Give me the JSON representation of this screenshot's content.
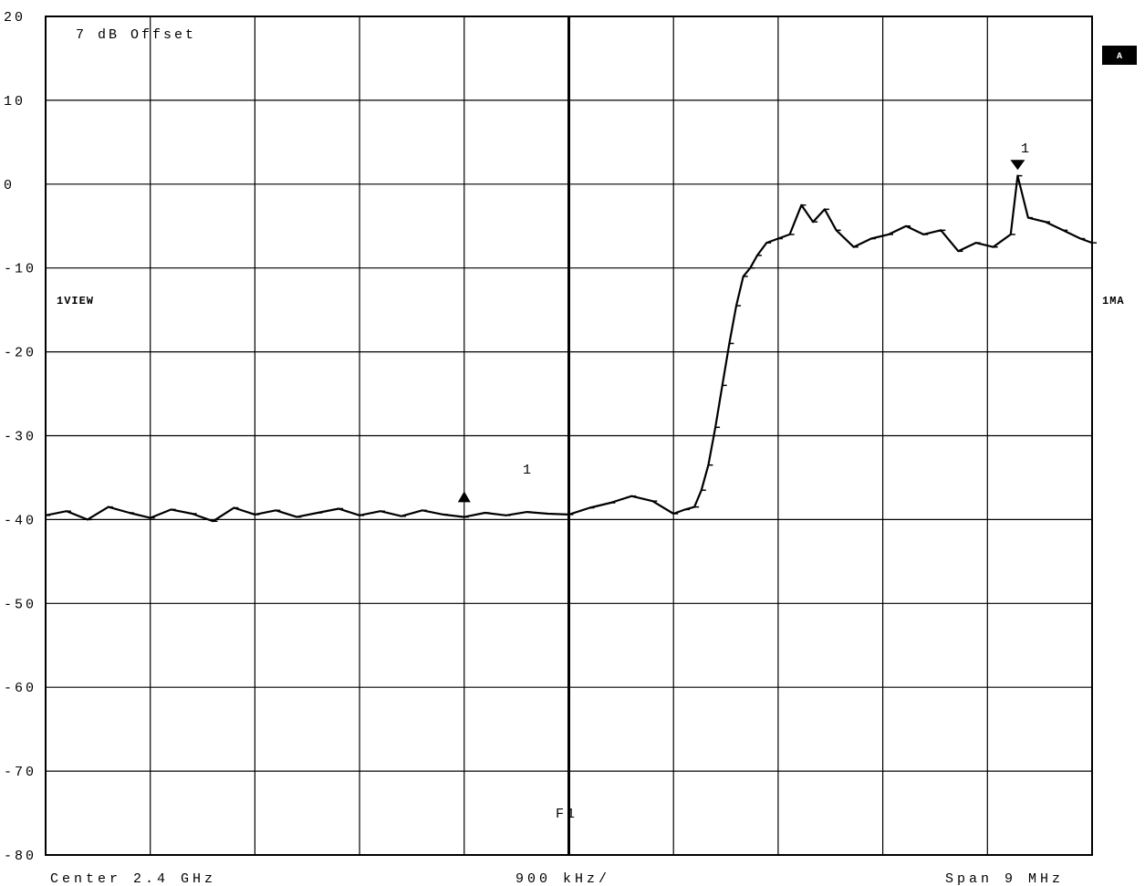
{
  "annotations": {
    "offset": "7 dB Offset",
    "left_label": "1VIEW",
    "right_label": "1MA",
    "badge": "A",
    "marker_label": "1",
    "marker_label_top": "1",
    "freq_marker": "F1"
  },
  "footer": {
    "center": "Center 2.4 GHz",
    "div": "900 kHz/",
    "span": "Span 9 MHz"
  },
  "chart_data": {
    "type": "line",
    "title": "",
    "xlabel": "",
    "ylabel": "",
    "y_unit": "dB",
    "ylim": [
      -80,
      20
    ],
    "y_ticks": [
      20,
      10,
      0,
      -10,
      -20,
      -30,
      -40,
      -50,
      -60,
      -70,
      -80
    ],
    "y_tick_labels": [
      "20",
      "10",
      "0",
      "-10",
      "-20",
      "-30",
      "-40",
      "-50",
      "-60",
      "-70",
      "-80"
    ],
    "x_unit": "MHz",
    "x_center": 2400,
    "x_span": 9,
    "xlim": [
      2395.5,
      2404.5
    ],
    "x_div": 0.9,
    "grid": true,
    "series": [
      {
        "x": [
          2395.5,
          2395.68,
          2395.86,
          2396.04,
          2396.22,
          2396.4,
          2396.58,
          2396.76,
          2396.94,
          2397.12,
          2397.3,
          2397.48,
          2397.66,
          2397.84,
          2398.02,
          2398.2,
          2398.38,
          2398.56,
          2398.74,
          2398.92,
          2399.1,
          2399.28,
          2399.46,
          2399.64,
          2399.82,
          2400.0,
          2400.18,
          2400.36,
          2400.54,
          2400.72,
          2400.9,
          2401.0,
          2401.08,
          2401.14,
          2401.2,
          2401.26,
          2401.32,
          2401.38,
          2401.44,
          2401.5,
          2401.56,
          2401.62,
          2401.7,
          2401.8,
          2401.9,
          2402.0,
          2402.1,
          2402.2,
          2402.3,
          2402.45,
          2402.6,
          2402.75,
          2402.9,
          2403.05,
          2403.2,
          2403.35,
          2403.5,
          2403.65,
          2403.8,
          2403.86,
          2403.95,
          2404.1,
          2404.25,
          2404.4,
          2404.5
        ],
        "y": [
          -39.5,
          -39.0,
          -40.0,
          -38.5,
          -39.2,
          -39.8,
          -38.8,
          -39.3,
          -40.2,
          -38.6,
          -39.4,
          -38.9,
          -39.7,
          -39.2,
          -38.7,
          -39.5,
          -39.0,
          -39.6,
          -38.9,
          -39.4,
          -39.7,
          -39.2,
          -39.5,
          -39.1,
          -39.3,
          -39.4,
          -38.6,
          -38.0,
          -37.2,
          -37.8,
          -39.3,
          -38.8,
          -38.5,
          -36.5,
          -33.5,
          -29.0,
          -24.0,
          -19.0,
          -14.5,
          -11.0,
          -10.0,
          -8.5,
          -7.0,
          -6.5,
          -6.0,
          -2.5,
          -4.5,
          -3.0,
          -5.5,
          -7.5,
          -6.5,
          -6.0,
          -5.0,
          -6.0,
          -5.5,
          -8.0,
          -7.0,
          -7.5,
          -6.0,
          1.0,
          -4.0,
          -4.5,
          -5.5,
          -6.5,
          -7.0
        ]
      }
    ],
    "markers": [
      {
        "label": "1",
        "x": 2399.1,
        "y": -37.5,
        "kind": "up-triangle"
      },
      {
        "label": "1",
        "x": 2403.86,
        "y": 1.8,
        "kind": "down-triangle"
      }
    ],
    "vertical_line": {
      "x": 2400.0,
      "label": "F1"
    }
  }
}
